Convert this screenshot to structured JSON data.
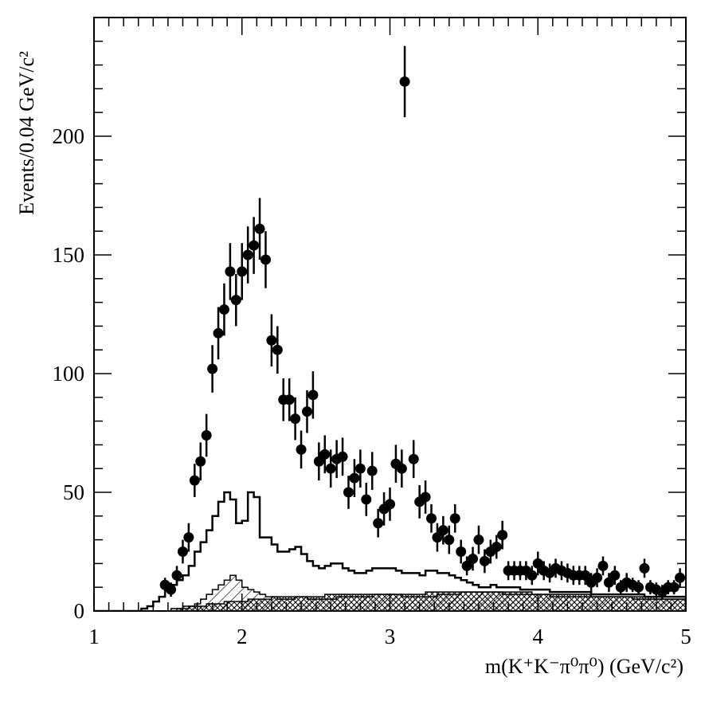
{
  "chart_data": {
    "type": "scatter",
    "title": "",
    "xlabel": "m(K⁺K⁻π⁰π⁰) (GeV/c²)",
    "ylabel": "Events/0.04 GeV/c²",
    "xlim": [
      1,
      5
    ],
    "ylim": [
      0,
      250
    ],
    "x_ticks": [
      1,
      2,
      3,
      4,
      5
    ],
    "y_ticks": [
      0,
      50,
      100,
      150,
      200
    ],
    "grid": false,
    "legend": "none",
    "bin_width": 0.04,
    "series": [
      {
        "kind": "data_points",
        "points": [
          [
            1.48,
            11,
            3
          ],
          [
            1.52,
            9,
            3
          ],
          [
            1.56,
            15,
            4
          ],
          [
            1.6,
            25,
            5
          ],
          [
            1.64,
            31,
            6
          ],
          [
            1.68,
            55,
            7
          ],
          [
            1.72,
            63,
            8
          ],
          [
            1.76,
            74,
            9
          ],
          [
            1.8,
            102,
            10
          ],
          [
            1.84,
            117,
            11
          ],
          [
            1.88,
            127,
            11
          ],
          [
            1.92,
            143,
            12
          ],
          [
            1.96,
            131,
            11
          ],
          [
            2.0,
            143,
            12
          ],
          [
            2.04,
            150,
            12
          ],
          [
            2.08,
            154,
            12
          ],
          [
            2.12,
            161,
            13
          ],
          [
            2.16,
            148,
            12
          ],
          [
            2.2,
            114,
            11
          ],
          [
            2.24,
            110,
            10
          ],
          [
            2.28,
            89,
            9
          ],
          [
            2.32,
            89,
            9
          ],
          [
            2.36,
            81,
            9
          ],
          [
            2.4,
            68,
            8
          ],
          [
            2.44,
            84,
            9
          ],
          [
            2.48,
            91,
            10
          ],
          [
            2.52,
            63,
            8
          ],
          [
            2.56,
            66,
            8
          ],
          [
            2.6,
            60,
            8
          ],
          [
            2.64,
            64,
            8
          ],
          [
            2.68,
            65,
            8
          ],
          [
            2.72,
            50,
            7
          ],
          [
            2.76,
            56,
            8
          ],
          [
            2.8,
            60,
            8
          ],
          [
            2.84,
            47,
            7
          ],
          [
            2.88,
            59,
            8
          ],
          [
            2.92,
            37,
            6
          ],
          [
            2.96,
            43,
            7
          ],
          [
            3.0,
            45,
            7
          ],
          [
            3.04,
            62,
            8
          ],
          [
            3.08,
            60,
            8
          ],
          [
            3.1,
            223,
            15
          ],
          [
            3.16,
            64,
            8
          ],
          [
            3.2,
            46,
            7
          ],
          [
            3.24,
            48,
            7
          ],
          [
            3.28,
            39,
            6
          ],
          [
            3.32,
            31,
            6
          ],
          [
            3.36,
            34,
            6
          ],
          [
            3.4,
            30,
            6
          ],
          [
            3.44,
            39,
            6
          ],
          [
            3.48,
            25,
            5
          ],
          [
            3.52,
            19,
            4
          ],
          [
            3.56,
            22,
            5
          ],
          [
            3.6,
            30,
            6
          ],
          [
            3.64,
            21,
            5
          ],
          [
            3.68,
            25,
            5
          ],
          [
            3.72,
            27,
            5
          ],
          [
            3.76,
            32,
            6
          ],
          [
            3.8,
            17,
            4
          ],
          [
            3.84,
            17,
            4
          ],
          [
            3.88,
            17,
            4
          ],
          [
            3.92,
            17,
            4
          ],
          [
            3.96,
            15,
            4
          ],
          [
            4.0,
            20,
            5
          ],
          [
            4.04,
            17,
            4
          ],
          [
            4.08,
            16,
            4
          ],
          [
            4.12,
            18,
            4
          ],
          [
            4.16,
            17,
            4
          ],
          [
            4.2,
            16,
            4
          ],
          [
            4.24,
            15,
            4
          ],
          [
            4.28,
            15,
            4
          ],
          [
            4.32,
            15,
            4
          ],
          [
            4.36,
            12,
            4
          ],
          [
            4.4,
            14,
            4
          ],
          [
            4.44,
            19,
            4
          ],
          [
            4.48,
            12,
            4
          ],
          [
            4.52,
            15,
            4
          ],
          [
            4.56,
            10,
            3
          ],
          [
            4.6,
            12,
            4
          ],
          [
            4.64,
            11,
            3
          ],
          [
            4.68,
            10,
            3
          ],
          [
            4.72,
            18,
            4
          ],
          [
            4.76,
            10,
            3
          ],
          [
            4.8,
            9,
            3
          ],
          [
            4.84,
            8,
            3
          ],
          [
            4.88,
            10,
            3
          ],
          [
            4.92,
            10,
            3
          ],
          [
            4.96,
            14,
            4
          ]
        ]
      },
      {
        "kind": "open_histogram",
        "x0": 1.0,
        "values": [
          0,
          0,
          0,
          0,
          0,
          0,
          0,
          0,
          1,
          2,
          4,
          6,
          9,
          11,
          13,
          15,
          19,
          25,
          29,
          34,
          40,
          46,
          50,
          47,
          37,
          38,
          50,
          48,
          31,
          31,
          28,
          25,
          25,
          26,
          27,
          24,
          21,
          19,
          18,
          19,
          20,
          20,
          18,
          17,
          16,
          16,
          17,
          18,
          18,
          18,
          18,
          17,
          16,
          16,
          16,
          15,
          17,
          17,
          16,
          16,
          15,
          14,
          13,
          12,
          11,
          10,
          10,
          11,
          10,
          10,
          10,
          10,
          9,
          9,
          9,
          9,
          9,
          8,
          8,
          8,
          8,
          8,
          8,
          8,
          7,
          7,
          7,
          7,
          7,
          7,
          7,
          7,
          7,
          6,
          6,
          6,
          6,
          6,
          6,
          6
        ]
      },
      {
        "kind": "hatched_histogram",
        "x0": 1.0,
        "values": [
          0,
          0,
          0,
          0,
          0,
          0,
          0,
          0,
          0,
          0,
          0,
          0,
          0,
          1,
          1,
          2,
          2,
          3,
          5,
          7,
          9,
          11,
          13,
          15,
          13,
          10,
          9,
          8,
          7,
          6,
          6,
          5,
          5,
          5,
          6,
          6,
          5,
          5,
          5,
          5,
          5,
          6,
          6,
          6,
          6,
          6,
          6,
          7,
          7,
          7,
          7,
          7,
          6,
          6,
          6,
          6,
          6,
          6,
          7,
          7,
          7,
          7,
          8,
          8,
          8,
          8,
          8,
          8,
          8,
          7,
          7,
          7,
          7,
          7,
          7,
          7,
          7,
          6,
          6,
          6,
          6,
          6,
          6,
          6,
          6,
          6,
          6,
          6,
          6,
          6,
          6,
          5,
          5,
          5,
          5,
          5,
          5,
          5,
          5,
          5
        ]
      },
      {
        "kind": "crosshatched_histogram",
        "x0": 1.0,
        "values": [
          0,
          0,
          0,
          0,
          0,
          0,
          0,
          0,
          0,
          0,
          0,
          0,
          0,
          0,
          1,
          1,
          2,
          2,
          2,
          3,
          3,
          3,
          4,
          4,
          4,
          4,
          5,
          5,
          5,
          5,
          6,
          6,
          6,
          6,
          6,
          6,
          6,
          6,
          6,
          7,
          7,
          7,
          7,
          7,
          7,
          7,
          7,
          7,
          7,
          7,
          7,
          7,
          7,
          7,
          7,
          7,
          8,
          8,
          8,
          8,
          8,
          8,
          8,
          8,
          8,
          8,
          8,
          8,
          8,
          8,
          8,
          8,
          8,
          8,
          7,
          7,
          7,
          7,
          7,
          7,
          7,
          7,
          7,
          7,
          6,
          6,
          6,
          6,
          6,
          6,
          6,
          6,
          6,
          6,
          6,
          5,
          5,
          5,
          5,
          5
        ]
      }
    ]
  }
}
